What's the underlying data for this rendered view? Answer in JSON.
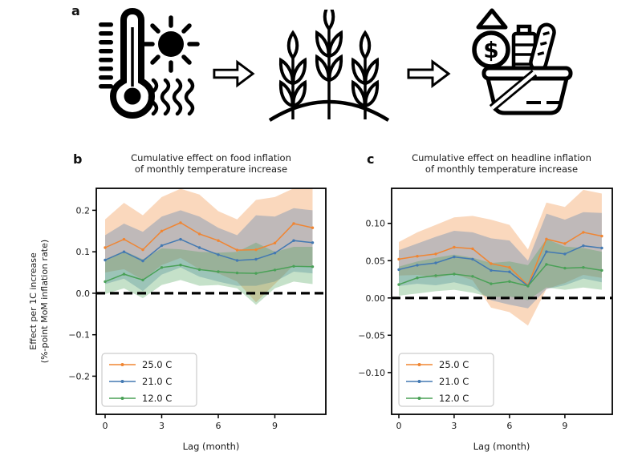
{
  "figure": {
    "panel_a": {
      "label": "a",
      "icons": [
        "thermometer-sun-heat-icon",
        "arrow-right-icon",
        "crops-icon",
        "arrow-right-icon",
        "food-basket-price-icon"
      ]
    }
  },
  "chart_data": [
    {
      "panel_label": "b",
      "type": "line",
      "title": "Cumulative effect on food inflation\nof monthly temperature increase",
      "xlabel": "Lag (month)",
      "ylabel": "Effect per 1C increase\n(%-point MoM inflation rate)",
      "x": [
        0,
        1,
        2,
        3,
        4,
        5,
        6,
        7,
        8,
        9,
        10,
        11
      ],
      "xticks": [
        0,
        3,
        6,
        9
      ],
      "xtick_labels": [
        "0",
        "3",
        "6",
        "9"
      ],
      "yticks": [
        0.2,
        0.1,
        0.0,
        -0.1,
        -0.2
      ],
      "ytick_labels": [
        "0.2",
        "0.1",
        "0.0",
        "−0.1",
        "−0.2"
      ],
      "xlim": [
        -0.47,
        11.7
      ],
      "ylim": [
        -0.292,
        0.253
      ],
      "zero_line": true,
      "grid": false,
      "legend_position": "lower left",
      "series": [
        {
          "name": "25.0 C",
          "color": "#f08532",
          "values": [
            0.11,
            0.13,
            0.105,
            0.15,
            0.17,
            0.143,
            0.127,
            0.104,
            0.105,
            0.121,
            0.168,
            0.158
          ],
          "band_upper": [
            0.178,
            0.218,
            0.188,
            0.232,
            0.252,
            0.238,
            0.198,
            0.178,
            0.225,
            0.232,
            0.253,
            0.252
          ],
          "band_lower": [
            0.05,
            0.058,
            0.032,
            0.068,
            0.085,
            0.058,
            0.048,
            0.028,
            -0.022,
            0.022,
            0.068,
            0.062
          ]
        },
        {
          "name": "21.0 C",
          "color": "#4379b2",
          "values": [
            0.08,
            0.1,
            0.078,
            0.115,
            0.13,
            0.11,
            0.093,
            0.079,
            0.082,
            0.097,
            0.127,
            0.122
          ],
          "band_upper": [
            0.14,
            0.168,
            0.148,
            0.185,
            0.2,
            0.185,
            0.158,
            0.14,
            0.188,
            0.185,
            0.205,
            0.2
          ],
          "band_lower": [
            0.022,
            0.035,
            0.005,
            0.045,
            0.062,
            0.04,
            0.028,
            0.018,
            0.018,
            0.028,
            0.052,
            0.048
          ]
        },
        {
          "name": "12.0 C",
          "color": "#4aa157",
          "values": [
            0.028,
            0.046,
            0.032,
            0.062,
            0.068,
            0.057,
            0.052,
            0.049,
            0.048,
            0.056,
            0.065,
            0.064
          ],
          "band_upper": [
            0.082,
            0.102,
            0.082,
            0.108,
            0.106,
            0.1,
            0.098,
            0.1,
            0.122,
            0.1,
            0.112,
            0.112
          ],
          "band_lower": [
            -0.002,
            0.012,
            -0.012,
            0.02,
            0.032,
            0.018,
            0.02,
            0.012,
            -0.028,
            0.012,
            0.028,
            0.022
          ]
        }
      ]
    },
    {
      "panel_label": "c",
      "type": "line",
      "title": "Cumulative effect on headline inflation\nof monthly temperature increase",
      "xlabel": "Lag (month)",
      "ylabel": "",
      "x": [
        0,
        1,
        2,
        3,
        4,
        5,
        6,
        7,
        8,
        9,
        10,
        11
      ],
      "xticks": [
        0,
        3,
        6,
        9
      ],
      "xtick_labels": [
        "0",
        "3",
        "6",
        "9"
      ],
      "yticks": [
        0.1,
        0.05,
        0.0,
        -0.05,
        -0.1
      ],
      "ytick_labels": [
        "0.10",
        "0.05",
        "0.00",
        "−0.05",
        "−0.10"
      ],
      "xlim": [
        -0.39,
        11.57
      ],
      "ylim": [
        -0.156,
        0.147
      ],
      "zero_line": true,
      "grid": false,
      "legend_position": "lower left",
      "series": [
        {
          "name": "25.0 C",
          "color": "#f08532",
          "values": [
            0.052,
            0.056,
            0.059,
            0.068,
            0.066,
            0.046,
            0.041,
            0.017,
            0.079,
            0.073,
            0.088,
            0.083
          ],
          "band_upper": [
            0.075,
            0.088,
            0.098,
            0.108,
            0.11,
            0.105,
            0.098,
            0.065,
            0.128,
            0.122,
            0.145,
            0.14
          ],
          "band_lower": [
            0.03,
            0.031,
            0.027,
            0.032,
            0.024,
            -0.013,
            -0.019,
            -0.037,
            0.012,
            0.02,
            0.031,
            0.027
          ]
        },
        {
          "name": "21.0 C",
          "color": "#4379b2",
          "values": [
            0.038,
            0.044,
            0.047,
            0.055,
            0.052,
            0.037,
            0.035,
            0.016,
            0.062,
            0.059,
            0.07,
            0.067
          ],
          "band_upper": [
            0.064,
            0.073,
            0.082,
            0.09,
            0.088,
            0.08,
            0.077,
            0.05,
            0.113,
            0.105,
            0.115,
            0.114
          ],
          "band_lower": [
            0.016,
            0.019,
            0.017,
            0.021,
            0.015,
            -0.003,
            -0.009,
            -0.014,
            0.012,
            0.017,
            0.026,
            0.021
          ]
        },
        {
          "name": "12.0 C",
          "color": "#4aa157",
          "values": [
            0.018,
            0.027,
            0.03,
            0.032,
            0.029,
            0.019,
            0.022,
            0.016,
            0.045,
            0.04,
            0.041,
            0.037
          ],
          "band_upper": [
            0.042,
            0.049,
            0.054,
            0.058,
            0.054,
            0.047,
            0.049,
            0.044,
            0.079,
            0.069,
            0.067,
            0.062
          ],
          "band_lower": [
            0.003,
            0.006,
            0.009,
            0.011,
            0.007,
            0.001,
            0.002,
            -0.003,
            0.014,
            0.011,
            0.014,
            0.011
          ]
        }
      ]
    }
  ],
  "style": {
    "band_opacity": 0.32,
    "zero_line_color": "#000000",
    "text_color": "#1a1a1a"
  }
}
